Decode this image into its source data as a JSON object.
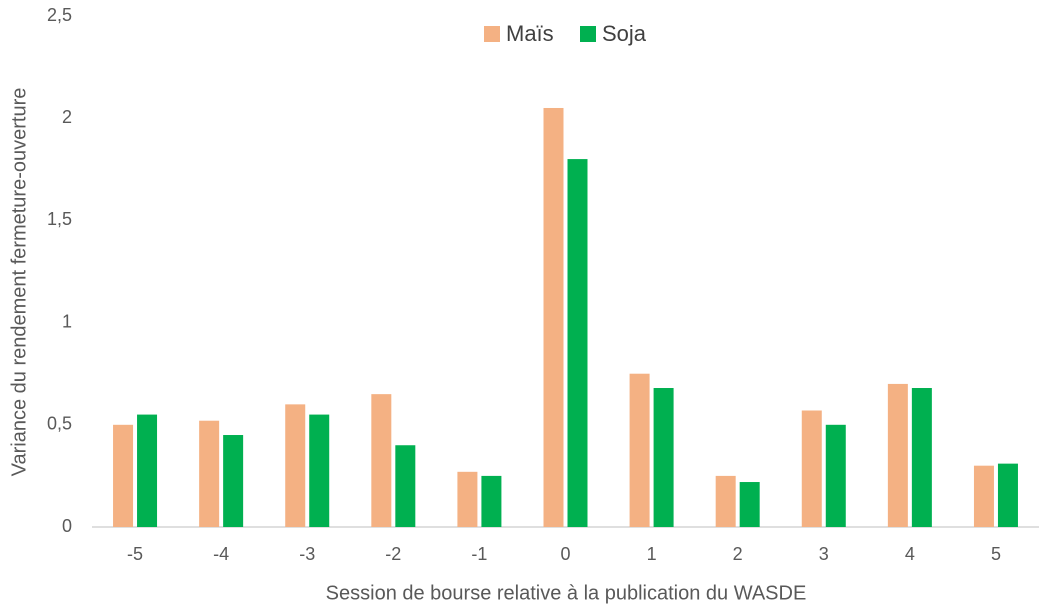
{
  "chart_data": {
    "type": "bar",
    "x_label": "Session de bourse relative à la publication du WASDE",
    "y_label": "Variance du rendement fermeture-ouverture",
    "categories": [
      "-5",
      "-4",
      "-3",
      "-2",
      "-1",
      "0",
      "1",
      "2",
      "3",
      "4",
      "5"
    ],
    "series": [
      {
        "name": "Maïs",
        "color": "#f4b183",
        "values": [
          0.5,
          0.52,
          0.6,
          0.65,
          0.27,
          2.05,
          0.75,
          0.25,
          0.57,
          0.7,
          0.3
        ]
      },
      {
        "name": "Soja",
        "color": "#00b050",
        "values": [
          0.55,
          0.45,
          0.55,
          0.4,
          0.25,
          1.8,
          0.68,
          0.22,
          0.5,
          0.68,
          0.31
        ]
      }
    ],
    "ylim": [
      0,
      2.5
    ],
    "yticks": [
      0,
      {
        "value": 0.5,
        "label": "0,5"
      },
      1,
      {
        "value": 1.5,
        "label": "1,5"
      },
      2,
      {
        "value": 2.5,
        "label": "2,5"
      }
    ],
    "legend": "top",
    "grid": false
  }
}
